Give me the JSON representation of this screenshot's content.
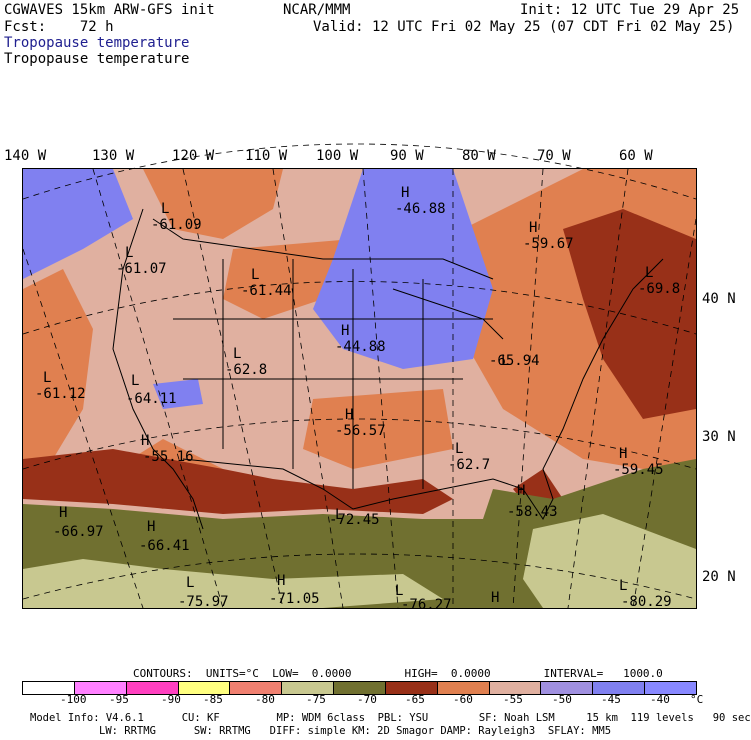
{
  "header": {
    "model": "CGWAVES 15km ARW-GFS init",
    "forecast": "Fcst:    72 h",
    "center": "NCAR/MMM",
    "init": "Init: 12 UTC Tue 29 Apr 25",
    "valid": "Valid: 12 UTC Fri 02 May 25 (07 CDT Fri 02 May 25)",
    "field_title_colored": "Tropopause temperature",
    "field_title": "Tropopause temperature"
  },
  "longitude_labels": [
    "140 W",
    "130 W",
    "120 W",
    "110 W",
    "100 W",
    "90 W",
    "80 W",
    "70 W",
    "60 W"
  ],
  "latitude_labels": [
    "40 N",
    "30 N",
    "20 N"
  ],
  "extrema": [
    {
      "type": "H",
      "value": "-46.88"
    },
    {
      "type": "L",
      "value": "-61.09"
    },
    {
      "type": "L",
      "value": "-61.07"
    },
    {
      "type": "H",
      "value": "-59.67"
    },
    {
      "type": "L",
      "value": "-61.44"
    },
    {
      "type": "L",
      "value": "-69.8"
    },
    {
      "type": "H",
      "value": "-44.88"
    },
    {
      "type": "L",
      "value": "-65.94"
    },
    {
      "type": "L",
      "value": "-62.8"
    },
    {
      "type": "L",
      "value": "-61.12"
    },
    {
      "type": "L",
      "value": "-64.11"
    },
    {
      "type": "H",
      "value": "-56.57"
    },
    {
      "type": "H",
      "value": "-55.16"
    },
    {
      "type": "L",
      "value": "-62.7"
    },
    {
      "type": "H",
      "value": "-59.45"
    },
    {
      "type": "H",
      "value": "-66.97"
    },
    {
      "type": "H",
      "value": "-66.41"
    },
    {
      "type": "L",
      "value": "-72.45"
    },
    {
      "type": "H",
      "value": "-58.43"
    },
    {
      "type": "L",
      "value": "-75.97"
    },
    {
      "type": "H",
      "value": "-71.05"
    },
    {
      "type": "L",
      "value": "-76.27"
    },
    {
      "type": "H",
      "value": ""
    },
    {
      "type": "L",
      "value": "-80.29"
    }
  ],
  "contours": "CONTOURS:  UNITS=°C  LOW=  0.0000        HIGH=  0.0000        INTERVAL=   1000.0",
  "colorbar": {
    "colors": [
      "#ffffff",
      "#ff80ff",
      "#ff40c0",
      "#ffff80",
      "#f08070",
      "#c8c890",
      "#707030",
      "#983018",
      "#e08050",
      "#e0b0a0",
      "#a090e0",
      "#8080f0",
      "#8888ff"
    ],
    "labels": [
      "-100",
      "-95",
      "-90",
      "-85",
      "-80",
      "-75",
      "-70",
      "-65",
      "-60",
      "-55",
      "-50",
      "-45",
      "-40",
      "°C"
    ]
  },
  "footer": {
    "line1": "Model Info: V4.6.1      CU: KF         MP: WDM 6class  PBL: YSU        SF: Noah LSM     15 km  119 levels   90 sec",
    "line2": "LW: RRTMG      SW: RRTMG   DIFF: simple KM: 2D Smagor DAMP: Rayleigh3  SFLAY: MM5"
  }
}
